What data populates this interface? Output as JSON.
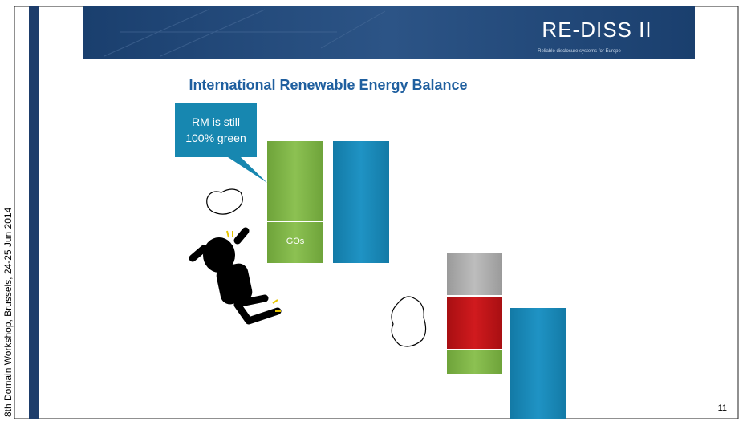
{
  "header": {
    "logo": "RE-DISS II",
    "tagline": "Reliable disclosure systems for Europe"
  },
  "title": "International Renewable Energy Balance",
  "callout": {
    "line1": "RM is still",
    "line2": "100% green"
  },
  "bar_label": "GOs",
  "footer": {
    "side_text": "8th Domain Workshop, Brussels, 24-25 Jun 2014",
    "page_number": "11"
  }
}
